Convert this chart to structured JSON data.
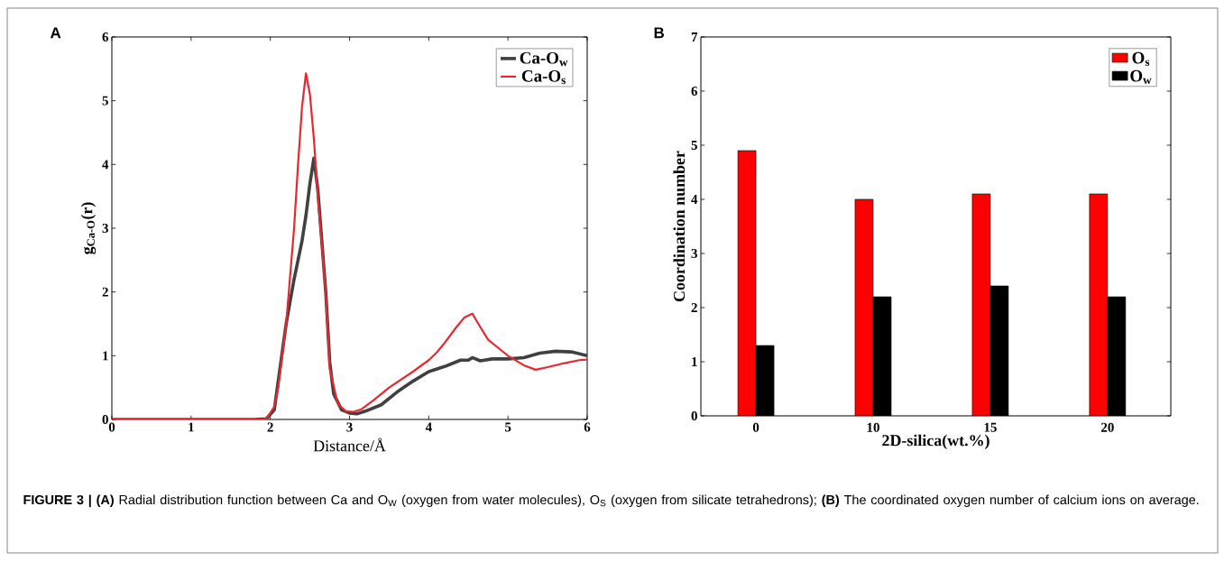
{
  "chart_data": [
    {
      "type": "line",
      "title": "A",
      "xlabel": "Distance/Å",
      "ylabel": "g$_{Ca-O}$(r)",
      "xlim": [
        0,
        6
      ],
      "ylim": [
        0,
        6
      ],
      "xticks": [
        0,
        1,
        2,
        3,
        4,
        5,
        6
      ],
      "yticks": [
        0,
        1,
        2,
        3,
        4,
        5,
        6
      ],
      "legend": "top right",
      "grid": false,
      "series": [
        {
          "name": "Ca-O$_{w}$",
          "color": "#404040",
          "x": [
            0,
            1.8,
            1.95,
            2.05,
            2.1,
            2.2,
            2.3,
            2.4,
            2.45,
            2.5,
            2.55,
            2.6,
            2.7,
            2.75,
            2.8,
            2.9,
            3.0,
            3.1,
            3.2,
            3.4,
            3.6,
            3.8,
            4.0,
            4.2,
            4.4,
            4.5,
            4.55,
            4.65,
            4.8,
            5.0,
            5.2,
            5.4,
            5.6,
            5.8,
            6.0
          ],
          "values": [
            0,
            0,
            0.01,
            0.15,
            0.6,
            1.5,
            2.2,
            2.8,
            3.2,
            3.7,
            4.1,
            3.6,
            2.0,
            0.9,
            0.4,
            0.15,
            0.1,
            0.09,
            0.13,
            0.23,
            0.43,
            0.6,
            0.75,
            0.83,
            0.93,
            0.93,
            0.97,
            0.92,
            0.95,
            0.95,
            0.97,
            1.04,
            1.07,
            1.06,
            1.0
          ]
        },
        {
          "name": "Ca-O$_{s}$",
          "color": "#e8282e",
          "x": [
            0,
            1.9,
            1.95,
            2.05,
            2.1,
            2.2,
            2.3,
            2.35,
            2.4,
            2.45,
            2.5,
            2.55,
            2.6,
            2.7,
            2.75,
            2.85,
            2.95,
            3.05,
            3.15,
            3.3,
            3.5,
            3.8,
            4.0,
            4.1,
            4.2,
            4.35,
            4.45,
            4.55,
            4.65,
            4.75,
            4.9,
            5.0,
            5.2,
            5.35,
            5.5,
            5.7,
            5.9,
            6.0
          ],
          "values": [
            0,
            0,
            0.01,
            0.2,
            0.5,
            1.5,
            3.0,
            4.0,
            4.9,
            5.43,
            5.1,
            4.4,
            3.5,
            2.0,
            0.8,
            0.25,
            0.13,
            0.12,
            0.16,
            0.3,
            0.5,
            0.75,
            0.93,
            1.05,
            1.2,
            1.45,
            1.6,
            1.66,
            1.45,
            1.25,
            1.1,
            1.0,
            0.85,
            0.78,
            0.82,
            0.88,
            0.93,
            0.94
          ]
        }
      ]
    },
    {
      "type": "bar",
      "title": "B",
      "xlabel": "2D-silica(wt.%)",
      "ylabel": "Coordination number",
      "categories": [
        "0",
        "10",
        "15",
        "20"
      ],
      "ylim": [
        0,
        7
      ],
      "yticks": [
        0,
        1,
        2,
        3,
        4,
        5,
        6,
        7
      ],
      "legend": "top right",
      "grid": false,
      "series": [
        {
          "name": "O$_{s}$",
          "color": "#ff0000",
          "values": [
            4.9,
            4.0,
            4.1,
            4.1
          ]
        },
        {
          "name": "O$_{w}$",
          "color": "#000000",
          "values": [
            1.3,
            2.2,
            2.4,
            2.2
          ]
        }
      ],
      "annotations": [
        "**FIGURE 3 | (A)** Radial distribution function between Ca and O$_{W}$ (oxygen from water molecules), O$_{S}$ (oxygen from silicate tetrahedrons); **(B)** The coordinated oxygen number of calcium ions on average."
      ]
    }
  ]
}
